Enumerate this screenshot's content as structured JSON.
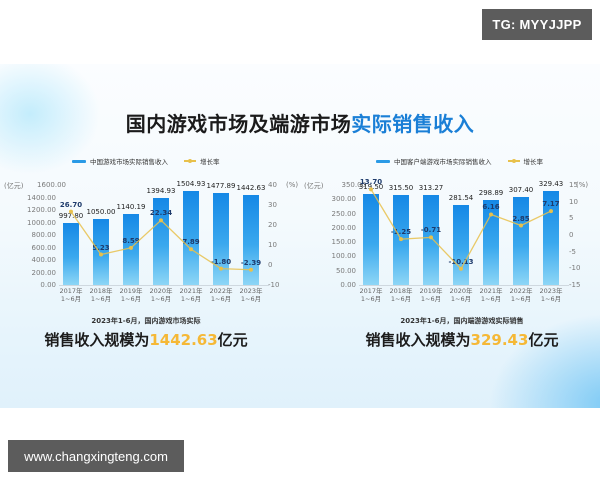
{
  "watermark_top": "TG: MYYJJPP",
  "watermark_bottom": "www.changxingteng.com",
  "title": {
    "prefix": "国内游戏市场及端游市场",
    "highlight": "实际销售收入"
  },
  "colors": {
    "bar_top": "#1588e6",
    "bar_bottom": "#8dd6f6",
    "line": "#e8c14c",
    "highlight_title": "#1a7fd6",
    "highlight_number": "#f5b836"
  },
  "chart_data": [
    {
      "type": "bar",
      "title": "中国游戏市场实际销售收入",
      "legend": [
        "中国游戏市场实际销售收入",
        "增长率"
      ],
      "categories": [
        "2017年\n1~6月",
        "2018年\n1~6月",
        "2019年\n1~6月",
        "2020年\n1~6月",
        "2021年\n1~6月",
        "2022年\n1~6月",
        "2023年\n1~6月"
      ],
      "category_year": [
        "2017年",
        "2018年",
        "2019年",
        "2020年",
        "2021年",
        "2022年",
        "2023年"
      ],
      "category_period": "1~6月",
      "series": [
        {
          "name": "中国游戏市场实际销售收入",
          "type": "bar",
          "axis": "left",
          "values": [
            997.8,
            1050.0,
            1140.19,
            1394.93,
            1504.93,
            1477.89,
            1442.63
          ],
          "labels": [
            "997.80",
            "1050.00",
            "1140.19",
            "1394.93",
            "1504.93",
            "1477.89",
            "1442.63"
          ]
        },
        {
          "name": "增长率",
          "type": "line",
          "axis": "right",
          "values": [
            26.7,
            5.23,
            8.59,
            22.34,
            7.89,
            -1.8,
            -2.39
          ],
          "labels": [
            "26.70",
            "5.23",
            "8.59",
            "22.34",
            "7.89",
            "-1.80",
            "-2.39"
          ]
        }
      ],
      "ylabel": "(亿元)",
      "ylabel_right": "(%)",
      "ylim": [
        0,
        1600
      ],
      "ylim_right": [
        -10,
        40
      ],
      "yticks": [
        "1600.00",
        "1400.00",
        "1200.00",
        "1000.00",
        "800.00",
        "600.00",
        "400.00",
        "200.00",
        "0.00"
      ],
      "yticks_right": [
        "40",
        "30",
        "20",
        "10",
        "0",
        "-10"
      ],
      "grid": false,
      "legend_position": "top"
    },
    {
      "type": "bar",
      "title": "中国客户端游戏市场实际销售收入",
      "legend": [
        "中国客户端游戏市场实际销售收入",
        "增长率"
      ],
      "categories": [
        "2017年\n1~6月",
        "2018年\n1~6月",
        "2019年\n1~6月",
        "2020年\n1~6月",
        "2021年\n1~6月",
        "2022年\n1~6月",
        "2023年\n1~6月"
      ],
      "category_year": [
        "2017年",
        "2018年",
        "2019年",
        "2020年",
        "2021年",
        "2022年",
        "2023年"
      ],
      "category_period": "1~6月",
      "series": [
        {
          "name": "中国客户端游戏市场实际销售收入",
          "type": "bar",
          "axis": "left",
          "values": [
            319.5,
            315.5,
            313.27,
            281.54,
            298.89,
            307.4,
            329.43
          ],
          "labels": [
            "319.50",
            "315.50",
            "313.27",
            "281.54",
            "298.89",
            "307.40",
            "329.43"
          ]
        },
        {
          "name": "增长率",
          "type": "line",
          "axis": "right",
          "values": [
            13.7,
            -1.25,
            -0.71,
            -10.13,
            6.16,
            2.85,
            7.17
          ],
          "labels": [
            "13.70",
            "-1.25",
            "-0.71",
            "-10.13",
            "6.16",
            "2.85",
            "7.17"
          ]
        }
      ],
      "ylabel": "(亿元)",
      "ylabel_right": "(%)",
      "ylim": [
        0,
        350
      ],
      "ylim_right": [
        -15,
        15
      ],
      "yticks": [
        "350.00",
        "300.00",
        "250.00",
        "200.00",
        "150.00",
        "100.00",
        "50.00",
        "0.00"
      ],
      "yticks_right": [
        "15",
        "10",
        "5",
        "0",
        "-5",
        "-10",
        "-15"
      ],
      "grid": false,
      "legend_position": "top"
    }
  ],
  "summaries": [
    {
      "sub": "2023年1-6月，国内游戏市场实际",
      "main_prefix": "销售收入规模为",
      "number": "1442.63",
      "unit": "亿元"
    },
    {
      "sub": "2023年1-6月，国内端游游戏实际销售",
      "main_prefix": "销售收入规模为",
      "number": "329.43",
      "unit": "亿元"
    }
  ]
}
